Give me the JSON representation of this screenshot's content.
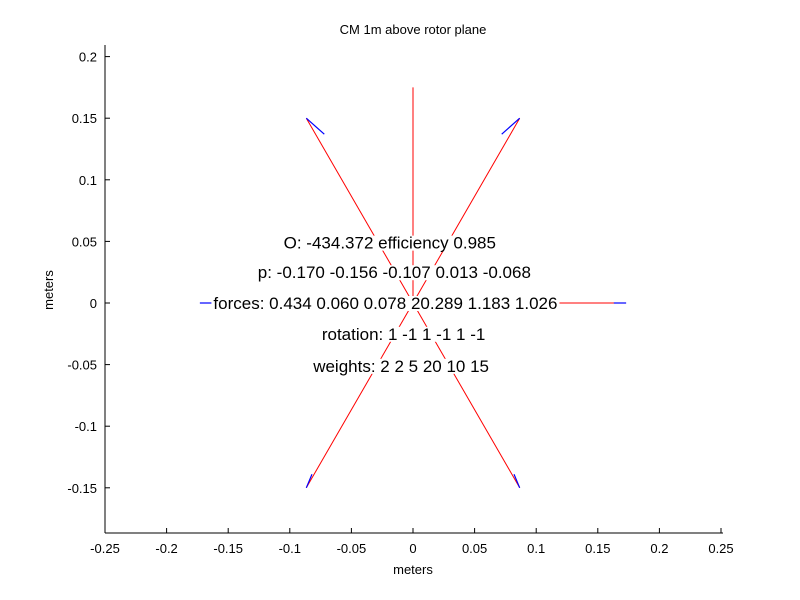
{
  "chart_data": {
    "type": "line",
    "title": "CM 1m above rotor plane",
    "xlabel": "meters",
    "ylabel": "meters",
    "xlim": [
      -0.255,
      0.255
    ],
    "ylim": [
      -0.185,
      0.212
    ],
    "xticks": [
      -0.25,
      -0.2,
      -0.15,
      -0.1,
      -0.05,
      0,
      0.05,
      0.1,
      0.15,
      0.2,
      0.25
    ],
    "yticks": [
      -0.15,
      -0.1,
      -0.05,
      0,
      0.05,
      0.1,
      0.15,
      0.2
    ],
    "xtick_labels": [
      "-0.25",
      "-0.2",
      "-0.15",
      "-0.1",
      "-0.05",
      "0",
      "0.05",
      "0.1",
      "0.15",
      "0.2",
      "0.25"
    ],
    "ytick_labels": [
      "-0.15",
      "-0.1",
      "-0.05",
      "0",
      "0.05",
      "0.1",
      "0.15",
      "0.2"
    ],
    "grid": false,
    "colors": {
      "force": "#ff0000",
      "rotor": "#0000ff",
      "axes": "#000000"
    },
    "force_lines": [
      {
        "from": [
          0,
          0
        ],
        "to": [
          0,
          0.175
        ]
      },
      {
        "from": [
          0,
          0
        ],
        "to": [
          0.0866,
          0.15
        ]
      },
      {
        "from": [
          0,
          0
        ],
        "to": [
          -0.0866,
          0.15
        ]
      },
      {
        "from": [
          0,
          0
        ],
        "to": [
          0.0866,
          -0.15
        ]
      },
      {
        "from": [
          0,
          0
        ],
        "to": [
          -0.0866,
          -0.15
        ]
      },
      {
        "from": [
          0,
          0
        ],
        "to": [
          0.168,
          0
        ]
      },
      {
        "from": [
          0,
          0
        ],
        "to": [
          -0.168,
          0
        ]
      }
    ],
    "rotor_marks": [
      {
        "from": [
          0.0866,
          0.15
        ],
        "to": [
          0.072,
          0.137
        ]
      },
      {
        "from": [
          -0.0866,
          0.15
        ],
        "to": [
          -0.072,
          0.137
        ]
      },
      {
        "from": [
          0.0866,
          -0.15
        ],
        "to": [
          0.082,
          -0.139
        ]
      },
      {
        "from": [
          -0.0866,
          -0.15
        ],
        "to": [
          -0.082,
          -0.139
        ]
      },
      {
        "from": [
          0.163,
          0
        ],
        "to": [
          0.173,
          0
        ]
      },
      {
        "from": [
          -0.163,
          0
        ],
        "to": [
          -0.173,
          0
        ]
      }
    ],
    "annotations": [
      {
        "text": "O: -434.372    efficiency 0.985",
        "x": -0.105,
        "y": 0.049
      },
      {
        "text": "p: -0.170 -0.156 -0.107 0.013 -0.068",
        "x": -0.126,
        "y": 0.025
      },
      {
        "text": "forces: 0.434 0.060 0.078 20.289 1.183 1.026",
        "x": -0.162,
        "y": 0
      },
      {
        "text": "rotation: 1 -1 1 -1 1 -1",
        "x": -0.074,
        "y": -0.025
      },
      {
        "text": "weights: 2 2 5 20 10 15",
        "x": -0.081,
        "y": -0.051
      }
    ]
  }
}
